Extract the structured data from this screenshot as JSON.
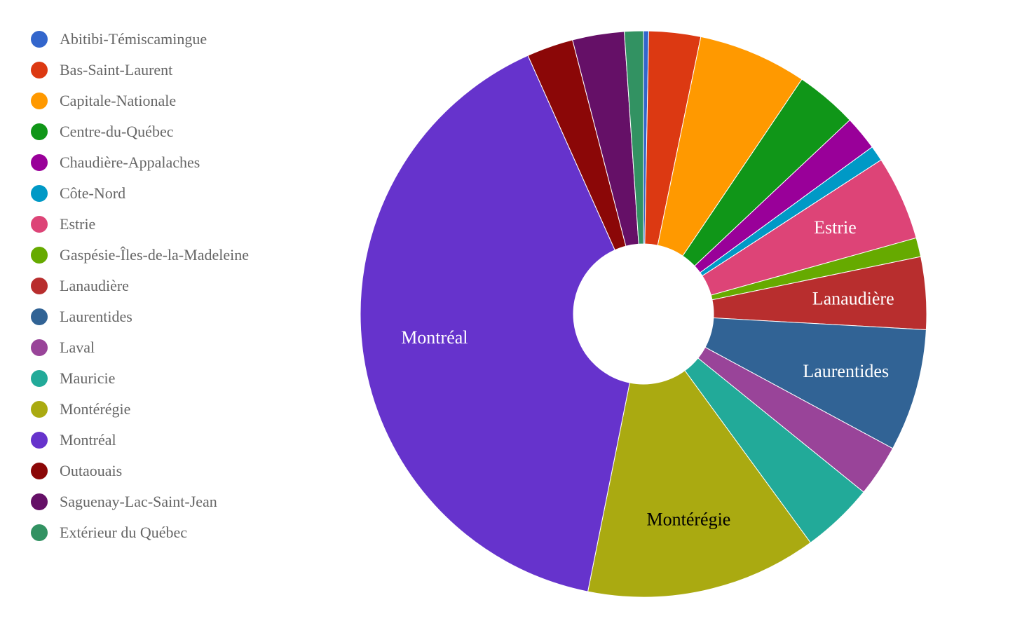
{
  "chart_data": {
    "type": "pie",
    "donut": true,
    "legend_position": "left",
    "categories": [
      "Abitibi-Témiscamingue",
      "Bas-Saint-Laurent",
      "Capitale-Nationale",
      "Centre-du-Québec",
      "Chaudière-Appalaches",
      "Côte-Nord",
      "Estrie",
      "Gaspésie-Îles-de-la-Madeleine",
      "Lanaudière",
      "Laurentides",
      "Laval",
      "Mauricie",
      "Montérégie",
      "Montréal",
      "Outaouais",
      "Saguenay-Lac-Saint-Jean",
      "Extérieur du Québec"
    ],
    "values": [
      0.3,
      3.0,
      6.3,
      3.6,
      2.0,
      0.9,
      4.9,
      1.1,
      4.2,
      7.1,
      3.0,
      4.2,
      13.4,
      40.8,
      2.7,
      3.0,
      1.1
    ],
    "colors": [
      "#3366cc",
      "#dc3912",
      "#ff9900",
      "#109618",
      "#990099",
      "#0099c6",
      "#dd4477",
      "#66aa00",
      "#b82e2e",
      "#316395",
      "#994499",
      "#22aa99",
      "#aaaa11",
      "#6633cc",
      "#8b0707",
      "#651067",
      "#329262"
    ],
    "slice_labels": [
      {
        "index": 6,
        "text": "Estrie",
        "color": "#ffffff"
      },
      {
        "index": 8,
        "text": "Lanaudière",
        "color": "#ffffff"
      },
      {
        "index": 9,
        "text": "Laurentides",
        "color": "#ffffff"
      },
      {
        "index": 12,
        "text": "Montérégie",
        "color": "#000000"
      },
      {
        "index": 13,
        "text": "Montréal",
        "color": "#ffffff"
      }
    ]
  }
}
